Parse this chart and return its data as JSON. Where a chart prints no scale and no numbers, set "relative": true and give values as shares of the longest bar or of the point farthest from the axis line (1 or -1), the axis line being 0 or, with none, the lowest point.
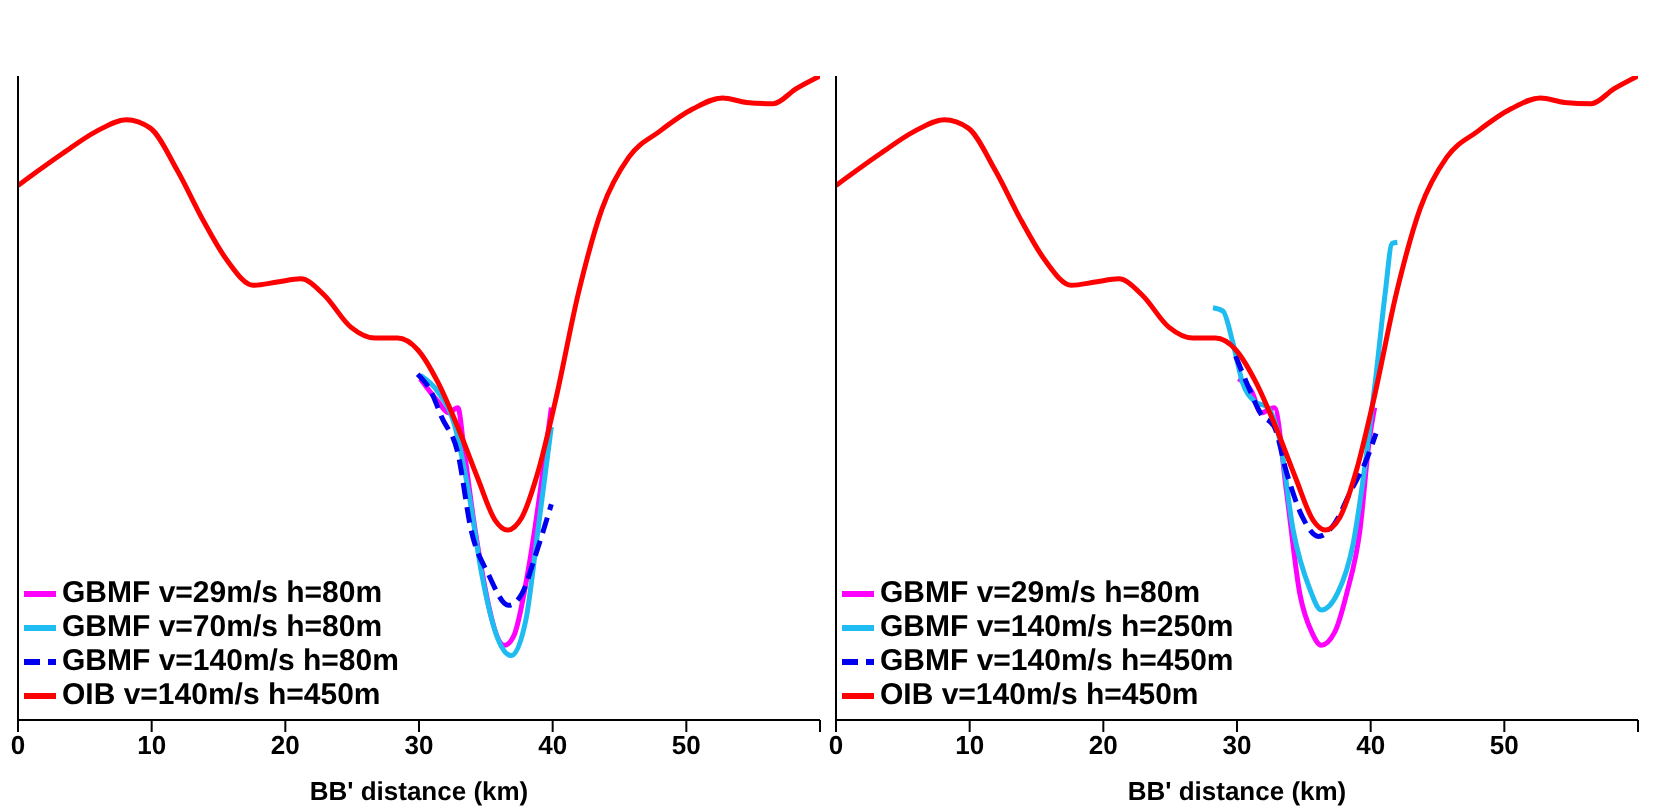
{
  "chart_data": [
    {
      "type": "line",
      "relative": true,
      "xlabel": "BB' distance (km)",
      "xlim": [
        0,
        60
      ],
      "xticks": [
        0,
        10,
        20,
        30,
        40,
        50,
        {
          "value": 60,
          "label": null
        }
      ],
      "legend": "bottom left",
      "series": [
        {
          "name": "GBMF v=29m/s h=80m",
          "color": "#ff00ff",
          "x": [
            30.1,
            31.4,
            32.2,
            32.9,
            33.4,
            34.2,
            36.4,
            37.1,
            38.2,
            39.2,
            39.9
          ],
          "values": [
            0.53,
            0.495,
            0.477,
            0.485,
            0.415,
            0.295,
            0.116,
            0.131,
            0.236,
            0.375,
            0.485
          ]
        },
        {
          "name": "GBMF v=70m/s h=80m",
          "color": "#1ebcf0",
          "x": [
            30.1,
            31.4,
            32.7,
            33.7,
            34.7,
            35.9,
            36.9,
            38.0,
            38.9,
            39.9
          ],
          "values": [
            0.535,
            0.51,
            0.455,
            0.355,
            0.226,
            0.126,
            0.1,
            0.156,
            0.295,
            0.455
          ]
        },
        {
          "name": "GBMF v=140m/s h=80m",
          "color": "#0000ee",
          "line_style": "dashed",
          "x": [
            29.9,
            30.9,
            31.7,
            32.9,
            33.9,
            35.2,
            36.7,
            37.7,
            38.7,
            39.9
          ],
          "values": [
            0.537,
            0.51,
            0.47,
            0.415,
            0.295,
            0.226,
            0.178,
            0.196,
            0.255,
            0.335
          ]
        },
        {
          "name": "OIB v=140m/s h=450m",
          "color": "#ff0000",
          "x": [
            0,
            3.36,
            5.86,
            8.1,
            9.9,
            11.9,
            13.9,
            15.6,
            17.6,
            19.4,
            21.15,
            22.9,
            24.9,
            26.7,
            28.4,
            29.9,
            31.4,
            32.9,
            34.4,
            35.7,
            36.6,
            37.7,
            38.9,
            40.2,
            41.95,
            43.7,
            45.7,
            48.0,
            50.5,
            52.7,
            54.5,
            56.5,
            58.2,
            60
          ],
          "values": [
            0.83,
            0.88,
            0.914,
            0.932,
            0.919,
            0.854,
            0.774,
            0.715,
            0.675,
            0.68,
            0.685,
            0.66,
            0.61,
            0.593,
            0.593,
            0.575,
            0.525,
            0.455,
            0.375,
            0.31,
            0.295,
            0.315,
            0.385,
            0.495,
            0.665,
            0.794,
            0.874,
            0.914,
            0.949,
            0.966,
            0.959,
            0.957,
            0.98,
            1.0
          ]
        }
      ]
    },
    {
      "type": "line",
      "relative": true,
      "xlabel": "BB' distance (km)",
      "xlim": [
        0,
        60
      ],
      "xticks": [
        0,
        10,
        20,
        30,
        40,
        50,
        {
          "value": 60,
          "label": null
        }
      ],
      "legend": "bottom left",
      "series": [
        {
          "name": "GBMF v=29m/s h=80m",
          "color": "#ff00ff",
          "x": [
            30.1,
            31.1,
            31.8,
            32.8,
            33.7,
            34.7,
            35.6,
            36.3,
            37.3,
            38.2,
            39.2,
            39.9,
            40.3
          ],
          "values": [
            0.53,
            0.51,
            0.477,
            0.485,
            0.355,
            0.196,
            0.136,
            0.116,
            0.136,
            0.196,
            0.295,
            0.435,
            0.485
          ]
        },
        {
          "name": "GBMF v=140m/s h=250m",
          "color": "#1ebcf0",
          "x": [
            28.2,
            28.95,
            29.7,
            30.4,
            31.3,
            32.3,
            33.2,
            34.2,
            35.4,
            36.3,
            37.5,
            38.7,
            39.7,
            40.4,
            41.1,
            41.6,
            42.0
          ],
          "values": [
            0.64,
            0.635,
            0.585,
            0.525,
            0.495,
            0.485,
            0.435,
            0.295,
            0.206,
            0.171,
            0.196,
            0.275,
            0.415,
            0.535,
            0.665,
            0.74,
            0.742
          ]
        },
        {
          "name": "GBMF v=140m/s h=450m",
          "color": "#0000ee",
          "line_style": "dashed",
          "x": [
            29.9,
            30.9,
            31.8,
            32.8,
            33.7,
            34.9,
            36.1,
            37.3,
            38.5,
            39.7,
            40.4
          ],
          "values": [
            0.565,
            0.515,
            0.475,
            0.455,
            0.385,
            0.315,
            0.285,
            0.305,
            0.355,
            0.405,
            0.445
          ]
        },
        {
          "name": "OIB v=140m/s h=450m",
          "color": "#ff0000",
          "x": [
            0,
            3.36,
            5.86,
            8.1,
            9.9,
            11.9,
            13.9,
            15.6,
            17.6,
            19.4,
            21.15,
            22.9,
            24.9,
            26.7,
            28.4,
            29.9,
            31.4,
            32.9,
            34.4,
            35.7,
            36.6,
            37.7,
            38.9,
            40.2,
            41.95,
            43.7,
            45.7,
            48.0,
            50.5,
            52.7,
            54.5,
            56.5,
            58.2,
            60
          ],
          "values": [
            0.83,
            0.88,
            0.914,
            0.932,
            0.919,
            0.854,
            0.774,
            0.715,
            0.675,
            0.68,
            0.685,
            0.66,
            0.61,
            0.593,
            0.593,
            0.575,
            0.525,
            0.455,
            0.375,
            0.31,
            0.295,
            0.315,
            0.385,
            0.495,
            0.665,
            0.794,
            0.874,
            0.914,
            0.949,
            0.966,
            0.959,
            0.957,
            0.98,
            1.0
          ]
        }
      ]
    }
  ]
}
